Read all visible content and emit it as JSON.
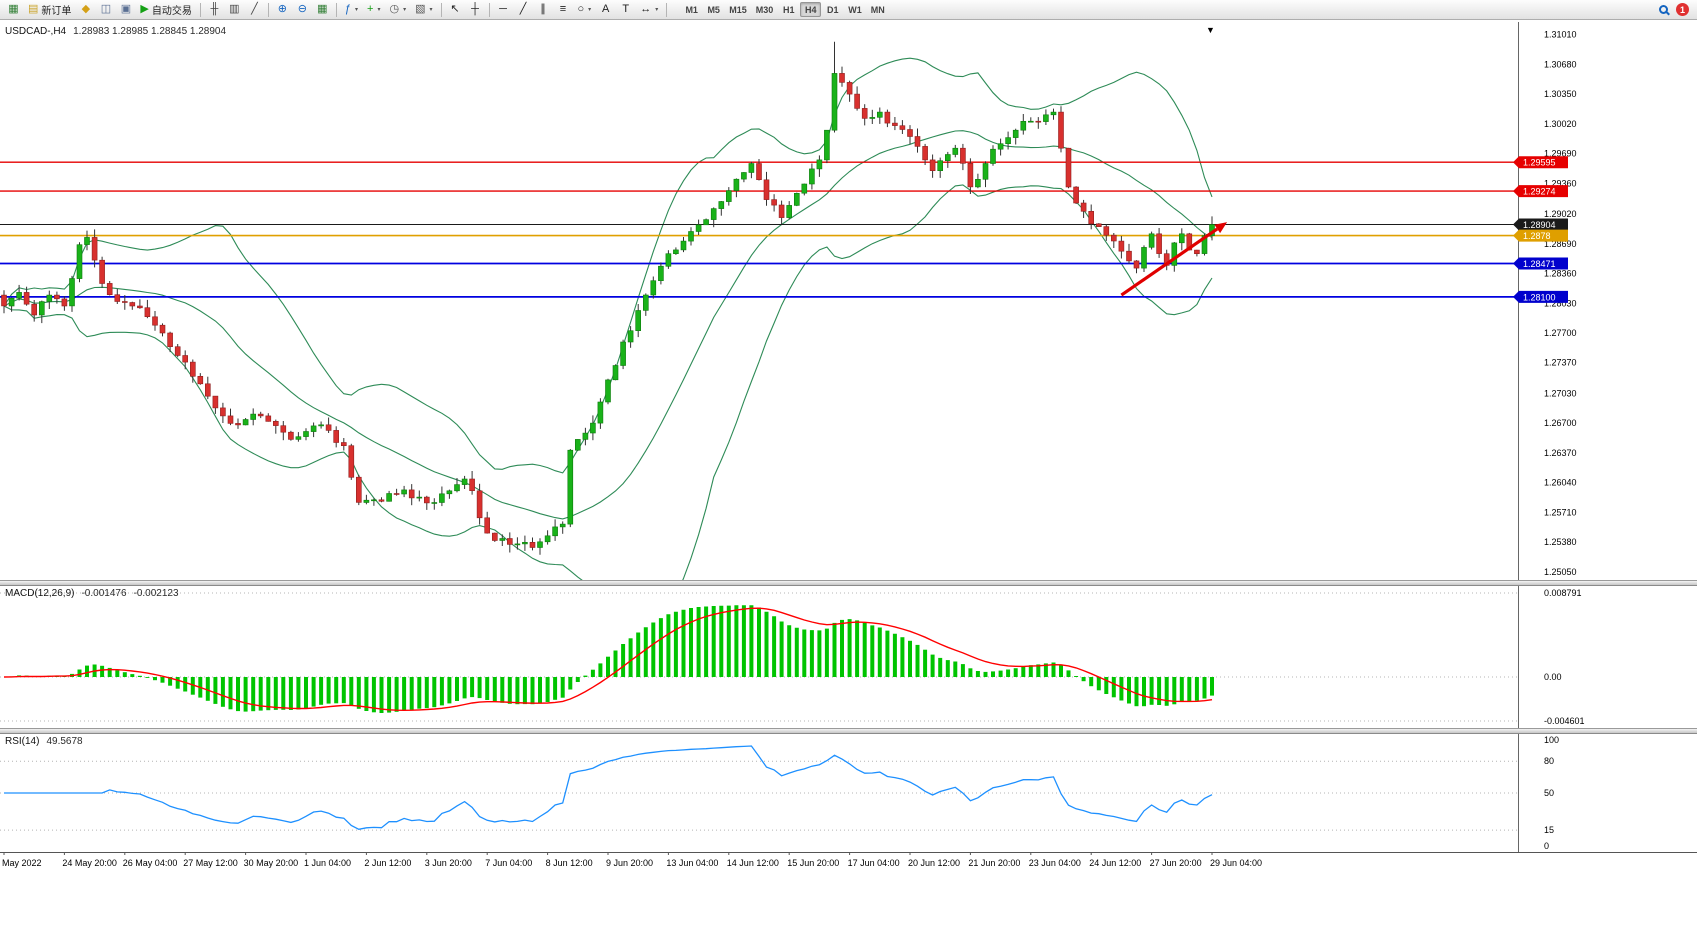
{
  "toolbar": {
    "buttons": [
      {
        "name": "charts-tile",
        "glyph": "▦",
        "color": "#2e7d32"
      },
      {
        "name": "new-order",
        "glyph": "▤",
        "color": "#c9a227",
        "label": "新订单"
      },
      {
        "name": "market-depth",
        "glyph": "◆",
        "color": "#d4a017"
      },
      {
        "name": "new-chart",
        "glyph": "◫",
        "color": "#5a6f93"
      },
      {
        "name": "profiles",
        "glyph": "▣",
        "color": "#5a6f93"
      },
      {
        "name": "auto-trading",
        "glyph": "▶",
        "color": "#14a014",
        "label": "自动交易"
      },
      {
        "sep": true
      },
      {
        "name": "bar-chart",
        "glyph": "╫",
        "color": "#444444"
      },
      {
        "name": "candlestick-chart",
        "glyph": "▥",
        "color": "#444444"
      },
      {
        "name": "line-chart",
        "glyph": "╱",
        "color": "#444444"
      },
      {
        "sep": true
      },
      {
        "name": "zoom-in",
        "glyph": "⊕",
        "color": "#1464c0"
      },
      {
        "name": "zoom-out",
        "glyph": "⊖",
        "color": "#1464c0"
      },
      {
        "name": "tile-windows",
        "glyph": "▦",
        "color": "#2e7d32"
      },
      {
        "sep": true
      },
      {
        "name": "indicators",
        "glyph": "ƒ",
        "color": "#1464c0",
        "dropdown": true
      },
      {
        "name": "add-indicator",
        "glyph": "+",
        "color": "#14a014",
        "dropdown": true
      },
      {
        "name": "periods",
        "glyph": "◷",
        "color": "#555555",
        "dropdown": true
      },
      {
        "name": "templates",
        "glyph": "▧",
        "color": "#555555",
        "dropdown": true
      },
      {
        "sep": true
      },
      {
        "name": "cursor",
        "glyph": "↖",
        "color": "#222222"
      },
      {
        "name": "crosshair",
        "glyph": "┼",
        "color": "#222222"
      },
      {
        "sep": true
      },
      {
        "name": "horizontal-line",
        "glyph": "─",
        "color": "#222222"
      },
      {
        "name": "trendline",
        "glyph": "╱",
        "color": "#222222"
      },
      {
        "name": "equidistant-channel",
        "glyph": "∥",
        "color": "#222222"
      },
      {
        "name": "fibonacci",
        "glyph": "≡",
        "color": "#222222"
      },
      {
        "name": "shapes",
        "glyph": "○",
        "color": "#222222",
        "dropdown": true
      },
      {
        "name": "text",
        "glyph": "A",
        "color": "#222222"
      },
      {
        "name": "text-label",
        "glyph": "T",
        "color": "#222222"
      },
      {
        "name": "arrow-objects",
        "glyph": "↔",
        "color": "#222222",
        "dropdown": true
      },
      {
        "sep": true
      }
    ],
    "timeframes": [
      "M1",
      "M5",
      "M15",
      "M30",
      "H1",
      "H4",
      "D1",
      "W1",
      "MN"
    ],
    "active_timeframe": "H4",
    "notification_count": "1"
  },
  "chart": {
    "symbol": "USDCAD-,H4",
    "ohlc": "1.28983 1.28985 1.28845 1.28904",
    "price_range": {
      "max": 1.3115,
      "min": 1.2496
    },
    "price_axis": [
      "1.31010",
      "1.30680",
      "1.30350",
      "1.30020",
      "1.29690",
      "1.29360",
      "1.29020",
      "1.28690",
      "1.28360",
      "1.28030",
      "1.27700",
      "1.27370",
      "1.27030",
      "1.26700",
      "1.26370",
      "1.26040",
      "1.25710",
      "1.25380",
      "1.25050"
    ],
    "time_axis": [
      "May 2022",
      "24 May 20:00",
      "26 May 04:00",
      "27 May 12:00",
      "30 May 20:00",
      "1 Jun 04:00",
      "2 Jun 12:00",
      "3 Jun 20:00",
      "7 Jun 04:00",
      "8 Jun 12:00",
      "9 Jun 20:00",
      "13 Jun 04:00",
      "14 Jun 12:00",
      "15 Jun 20:00",
      "17 Jun 04:00",
      "20 Jun 12:00",
      "21 Jun 20:00",
      "23 Jun 04:00",
      "24 Jun 12:00",
      "27 Jun 20:00",
      "29 Jun 04:00"
    ],
    "hlines": [
      {
        "price": 1.29595,
        "label": "1.29595",
        "color": "#e60000",
        "width": 1.4,
        "tag": "#e60000"
      },
      {
        "price": 1.29274,
        "label": "1.29274",
        "color": "#e60000",
        "width": 1.4,
        "tag": "#e60000"
      },
      {
        "price": 1.28904,
        "label": "1.28904",
        "color": "#1a1a1a",
        "width": 1,
        "tag": "#1a1a1a"
      },
      {
        "price": 1.2878,
        "label": "1.2878",
        "color": "#e0a000",
        "width": 1.6,
        "tag": "#df9f00"
      },
      {
        "price": 1.28471,
        "label": "1.28471",
        "color": "#0000e0",
        "width": 1.8,
        "tag": "#0000cd"
      },
      {
        "price": 1.281,
        "label": "1.28100",
        "color": "#0000e0",
        "width": 1.8,
        "tag": "#0000cd"
      }
    ],
    "arrow": {
      "from": [
        148,
        1.2812
      ],
      "to": [
        162,
        1.2893
      ],
      "color": "#e00000"
    },
    "scroll_marker": "▼"
  },
  "chart_data": {
    "type": "candlestick",
    "symbol": "USDCAD",
    "timeframe": "H4",
    "candle_count": 161,
    "price_waypoints": [
      [
        0,
        1.28
      ],
      [
        2,
        1.2815
      ],
      [
        4,
        1.279
      ],
      [
        6,
        1.2812
      ],
      [
        8,
        1.28
      ],
      [
        10,
        1.2868
      ],
      [
        11,
        1.2876
      ],
      [
        13,
        1.2825
      ],
      [
        15,
        1.2805
      ],
      [
        17,
        1.28
      ],
      [
        19,
        1.2788
      ],
      [
        21,
        1.277
      ],
      [
        23,
        1.2745
      ],
      [
        25,
        1.2722
      ],
      [
        27,
        1.27
      ],
      [
        29,
        1.2678
      ],
      [
        31,
        1.2668
      ],
      [
        33,
        1.268
      ],
      [
        35,
        1.2672
      ],
      [
        37,
        1.266
      ],
      [
        39,
        1.2655
      ],
      [
        41,
        1.2667
      ],
      [
        43,
        1.2662
      ],
      [
        45,
        1.2645
      ],
      [
        46,
        1.261
      ],
      [
        47,
        1.2582
      ],
      [
        49,
        1.2585
      ],
      [
        51,
        1.2592
      ],
      [
        53,
        1.2596
      ],
      [
        55,
        1.2588
      ],
      [
        57,
        1.2582
      ],
      [
        59,
        1.2595
      ],
      [
        61,
        1.2608
      ],
      [
        62,
        1.2595
      ],
      [
        63,
        1.2565
      ],
      [
        64,
        1.2548
      ],
      [
        66,
        1.2542
      ],
      [
        68,
        1.2536
      ],
      [
        70,
        1.2532
      ],
      [
        72,
        1.2545
      ],
      [
        74,
        1.2558
      ],
      [
        75,
        1.264
      ],
      [
        76,
        1.2652
      ],
      [
        78,
        1.267
      ],
      [
        80,
        1.2718
      ],
      [
        82,
        1.276
      ],
      [
        84,
        1.2795
      ],
      [
        86,
        1.2828
      ],
      [
        88,
        1.2858
      ],
      [
        90,
        1.2872
      ],
      [
        92,
        1.289
      ],
      [
        94,
        1.2908
      ],
      [
        96,
        1.2928
      ],
      [
        98,
        1.2948
      ],
      [
        99,
        1.2958
      ],
      [
        100,
        1.294
      ],
      [
        101,
        1.2918
      ],
      [
        103,
        1.2898
      ],
      [
        105,
        1.2925
      ],
      [
        107,
        1.2952
      ],
      [
        108,
        1.2962
      ],
      [
        109,
        1.2995
      ],
      [
        110,
        1.3058
      ],
      [
        111,
        1.3048
      ],
      [
        112,
        1.3035
      ],
      [
        114,
        1.3008
      ],
      [
        116,
        1.3015
      ],
      [
        118,
        1.3
      ],
      [
        120,
        1.2988
      ],
      [
        122,
        1.2962
      ],
      [
        123,
        1.295
      ],
      [
        125,
        1.2968
      ],
      [
        126,
        1.2975
      ],
      [
        128,
        1.2932
      ],
      [
        130,
        1.2958
      ],
      [
        132,
        1.298
      ],
      [
        134,
        1.2995
      ],
      [
        136,
        1.3005
      ],
      [
        138,
        1.3012
      ],
      [
        139,
        1.3015
      ],
      [
        140,
        1.2975
      ],
      [
        141,
        1.2932
      ],
      [
        143,
        1.2905
      ],
      [
        145,
        1.2888
      ],
      [
        147,
        1.2872
      ],
      [
        149,
        1.285
      ],
      [
        150,
        1.2842
      ],
      [
        151,
        1.2865
      ],
      [
        152,
        1.288
      ],
      [
        153,
        1.2858
      ],
      [
        154,
        1.2845
      ],
      [
        155,
        1.287
      ],
      [
        156,
        1.288
      ],
      [
        157,
        1.2862
      ],
      [
        158,
        1.2858
      ],
      [
        159,
        1.2878
      ],
      [
        160,
        1.28904
      ]
    ],
    "special_wicks": {
      "110": 0.0035
    },
    "overlays": {
      "bollinger": {
        "period": 20,
        "deviation": 2,
        "color": "#2E8B57"
      }
    },
    "bull_color": "#19b219",
    "bear_color": "#d8302e",
    "wick_color": "#333333",
    "macd": {
      "name": "MACD(12,26,9)",
      "main_value": "-0.001476",
      "signal_value": "-0.002123",
      "axis": [
        "0.008791",
        "0.00",
        "-0.004601"
      ],
      "hist_color": "#00c400",
      "signal_color": "#ff0000"
    },
    "rsi": {
      "name": "RSI(14)",
      "value": "49.5678",
      "axis": [
        "100",
        "80",
        "50",
        "15",
        "0"
      ],
      "levels": [
        80,
        50,
        15
      ],
      "color": "#1e90ff"
    }
  }
}
